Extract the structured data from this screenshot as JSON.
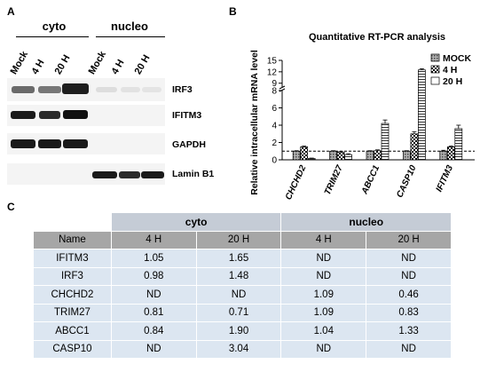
{
  "panel_a": {
    "label": "A",
    "group_cyto": "cyto",
    "group_nucleo": "nucleo",
    "lanes": [
      "Mock",
      "4 H",
      "20 H",
      "Mock",
      "4 H",
      "20 H"
    ],
    "proteins": [
      "IRF3",
      "IFITM3",
      "GAPDH",
      "Lamin B1"
    ]
  },
  "panel_b": {
    "label": "B",
    "legend": [
      "MOCK",
      "4 H",
      "20 H"
    ]
  },
  "chart_data": {
    "type": "bar",
    "title": "Quantitative RT-PCR analysis",
    "xlabel": "",
    "ylabel": "Relative intracellular mRNA level",
    "categories": [
      "CHCHD2",
      "TRIM27",
      "ABCC1",
      "CASP10",
      "IFITM3"
    ],
    "series": [
      {
        "name": "MOCK",
        "values": [
          1.0,
          1.0,
          1.0,
          1.0,
          1.0
        ],
        "errors": [
          0.05,
          0.05,
          0.05,
          0.05,
          0.1
        ]
      },
      {
        "name": "4 H",
        "values": [
          1.5,
          0.9,
          1.05,
          3.0,
          1.5
        ],
        "errors": [
          0.1,
          0.05,
          0.1,
          0.25,
          0.1
        ]
      },
      {
        "name": "20 H",
        "values": [
          0.15,
          0.6,
          4.2,
          12.5,
          3.6
        ],
        "errors": [
          0.05,
          0.1,
          0.4,
          0.3,
          0.4
        ]
      }
    ],
    "y_ticks_lower": [
      "0",
      "2",
      "4",
      "6",
      "8"
    ],
    "y_ticks_upper": [
      "9",
      "12",
      "15"
    ],
    "ylim_lower": [
      0,
      8
    ],
    "ylim_upper": [
      8,
      15
    ],
    "reference_line": 1,
    "axis_break": true
  },
  "panel_c": {
    "label": "C",
    "group_headers": [
      "cyto",
      "nucleo"
    ],
    "columns": [
      "Name",
      "4 H",
      "20 H",
      "4 H",
      "20 H"
    ],
    "rows": [
      [
        "IFITM3",
        "1.05",
        "1.65",
        "ND",
        "ND"
      ],
      [
        "IRF3",
        "0.98",
        "1.48",
        "ND",
        "ND"
      ],
      [
        "CHCHD2",
        "ND",
        "ND",
        "1.09",
        "0.46"
      ],
      [
        "TRIM27",
        "0.81",
        "0.71",
        "1.09",
        "0.83"
      ],
      [
        "ABCC1",
        "0.84",
        "1.90",
        "1.04",
        "1.33"
      ],
      [
        "CASP10",
        "ND",
        "3.04",
        "ND",
        "ND"
      ]
    ]
  }
}
